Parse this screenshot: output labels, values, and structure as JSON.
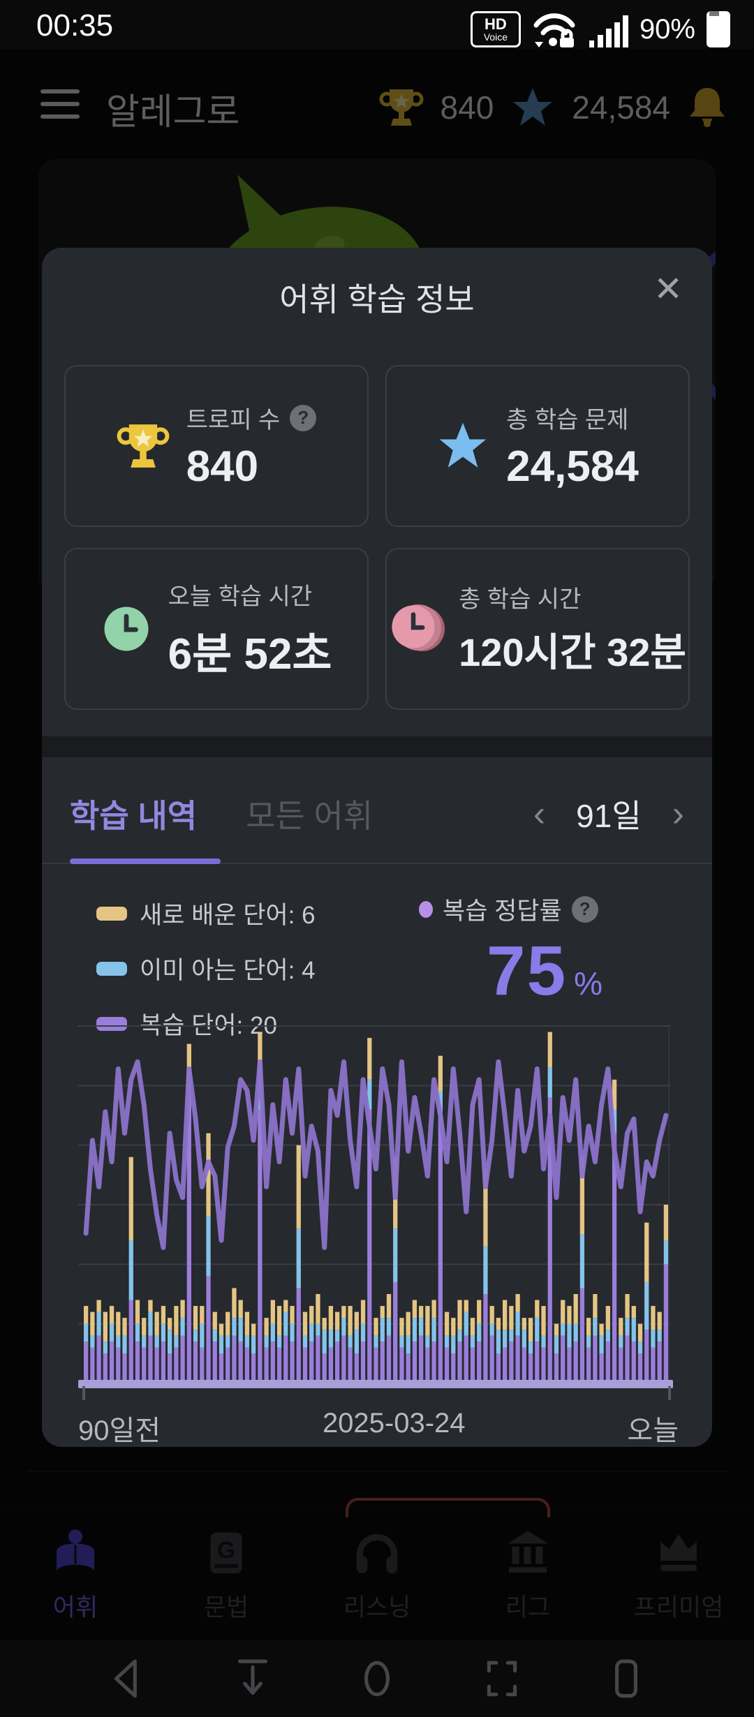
{
  "status_bar": {
    "time": "00:35",
    "hd_badge_top": "HD",
    "hd_badge_bottom": "Voice",
    "battery_percent": "90%"
  },
  "header": {
    "title": "알레그로",
    "trophy_count": "840",
    "star_count": "24,584"
  },
  "modal": {
    "title": "어휘 학습 정보",
    "close_label": "✕",
    "cards": [
      {
        "icon": "trophy",
        "label": "트로피 수",
        "value": "840"
      },
      {
        "icon": "star",
        "label": "총 학습 문제",
        "value": "24,584"
      },
      {
        "icon": "clock-green",
        "label": "오늘 학습 시간",
        "value": "6분 52초"
      },
      {
        "icon": "clock-pink",
        "label": "총 학습 시간",
        "value": "120시간 32분"
      }
    ],
    "tabs": {
      "active": "학습 내역",
      "inactive": "모든 어휘"
    },
    "period": {
      "prev": "‹",
      "label": "91일",
      "next": "›"
    },
    "legend": {
      "items": [
        {
          "label": "새로 배운 단어: 6",
          "color": "#e4c584"
        },
        {
          "label": "이미 아는 단어: 4",
          "color": "#85c3ea"
        },
        {
          "label": "복습 단어: 20",
          "color": "#9b7edb"
        }
      ],
      "accuracy_title": "복습 정답률",
      "accuracy_value": "75",
      "accuracy_unit": "%"
    }
  },
  "chart_data": {
    "type": "bar+line",
    "days": 91,
    "x_axis_labels": {
      "left": "90일전",
      "center": "2025-03-24",
      "right": "오늘"
    },
    "bar_ylim": [
      0,
      60
    ],
    "line_ylim": [
      0,
      100
    ],
    "grid_intervals": 6,
    "baseline_color": "#a89fd9",
    "grid_color": "#3a3e44",
    "series": [
      {
        "name": "새로 배운 단어",
        "type": "bar",
        "color": "#e4c584",
        "values": [
          3,
          4,
          2,
          5,
          3,
          4,
          3,
          14,
          4,
          3,
          2,
          4,
          3,
          2,
          5,
          3,
          4,
          4,
          3,
          14,
          3,
          2,
          4,
          5,
          3,
          4,
          2,
          6,
          3,
          4,
          5,
          2,
          3,
          14,
          4,
          3,
          5,
          2,
          4,
          3,
          2,
          5,
          3,
          4,
          7,
          3,
          2,
          4,
          12,
          3,
          4,
          3,
          2,
          5,
          3,
          6,
          4,
          3,
          5,
          2,
          3,
          4,
          13,
          3,
          2,
          5,
          4,
          3,
          2,
          4,
          3,
          5,
          6,
          2,
          4,
          3,
          5,
          13,
          3,
          4,
          2,
          4,
          5,
          3,
          4,
          2,
          3,
          10,
          4,
          3,
          6
        ]
      },
      {
        "name": "이미 아는 단어",
        "type": "bar",
        "color": "#85c3ea",
        "values": [
          3,
          2,
          4,
          2,
          3,
          2,
          3,
          10,
          3,
          2,
          4,
          2,
          3,
          4,
          2,
          3,
          5,
          2,
          4,
          10,
          2,
          3,
          2,
          3,
          4,
          2,
          3,
          7,
          2,
          3,
          2,
          4,
          3,
          10,
          2,
          3,
          2,
          4,
          3,
          2,
          3,
          2,
          4,
          3,
          5,
          2,
          4,
          3,
          9,
          2,
          3,
          4,
          3,
          2,
          4,
          5,
          2,
          3,
          2,
          4,
          2,
          3,
          8,
          2,
          4,
          3,
          2,
          4,
          3,
          2,
          4,
          2,
          5,
          3,
          2,
          4,
          3,
          9,
          2,
          3,
          3,
          2,
          4,
          2,
          3,
          4,
          2,
          8,
          3,
          2,
          4
        ]
      },
      {
        "name": "복습 단어",
        "type": "bar",
        "color": "#9b7edb",
        "values": [
          7,
          6,
          8,
          5,
          7,
          6,
          5,
          14,
          7,
          6,
          8,
          6,
          7,
          5,
          6,
          8,
          48,
          7,
          6,
          18,
          7,
          5,
          6,
          8,
          7,
          6,
          5,
          46,
          6,
          7,
          6,
          8,
          7,
          16,
          6,
          7,
          8,
          5,
          6,
          7,
          8,
          6,
          5,
          7,
          46,
          6,
          7,
          8,
          17,
          6,
          5,
          7,
          8,
          6,
          7,
          44,
          6,
          5,
          7,
          8,
          6,
          7,
          15,
          8,
          5,
          6,
          7,
          8,
          6,
          5,
          7,
          6,
          48,
          5,
          8,
          6,
          7,
          16,
          6,
          8,
          5,
          7,
          42,
          6,
          8,
          7,
          5,
          9,
          6,
          7,
          20
        ]
      },
      {
        "name": "복습 정답률",
        "type": "line",
        "color": "#8b72c9",
        "values": [
          42,
          68,
          55,
          76,
          62,
          88,
          70,
          85,
          90,
          78,
          60,
          47,
          38,
          70,
          57,
          52,
          88,
          74,
          55,
          62,
          58,
          40,
          66,
          72,
          85,
          82,
          68,
          90,
          55,
          78,
          62,
          85,
          70,
          88,
          58,
          72,
          65,
          38,
          82,
          75,
          90,
          68,
          55,
          85,
          72,
          60,
          88,
          78,
          52,
          90,
          65,
          80,
          70,
          58,
          85,
          75,
          62,
          88,
          70,
          48,
          78,
          85,
          55,
          68,
          90,
          75,
          58,
          82,
          65,
          72,
          88,
          60,
          75,
          52,
          80,
          68,
          85,
          58,
          72,
          62,
          78,
          88,
          65,
          55,
          70,
          74,
          48,
          62,
          58,
          68,
          75
        ]
      }
    ]
  },
  "bottom_nav": {
    "items": [
      {
        "label": "어휘"
      },
      {
        "label": "문법"
      },
      {
        "label": "리스닝"
      },
      {
        "label": "리그"
      },
      {
        "label": "프리미엄"
      }
    ]
  }
}
